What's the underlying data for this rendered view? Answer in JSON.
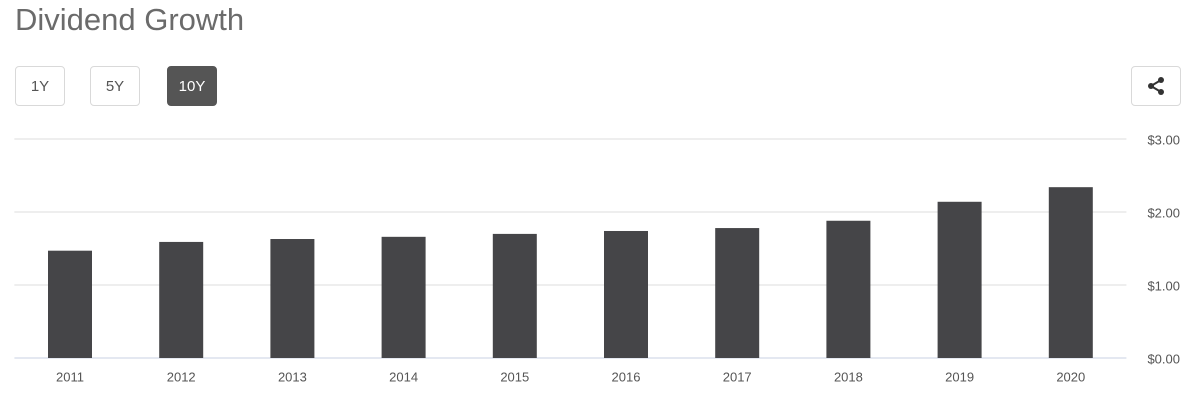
{
  "range_buttons": [
    "1Y",
    "5Y",
    "10Y"
  ],
  "selected_button": 2,
  "chart_data": {
    "type": "bar",
    "title": "Dividend Growth",
    "categories": [
      "2011",
      "2012",
      "2013",
      "2014",
      "2015",
      "2016",
      "2017",
      "2018",
      "2019",
      "2020"
    ],
    "values": [
      1.47,
      1.59,
      1.63,
      1.66,
      1.7,
      1.74,
      1.78,
      1.88,
      2.14,
      2.34
    ],
    "color": "#454548",
    "ylim": [
      0,
      3
    ],
    "yticks": [
      {
        "value": 0,
        "label": "$0.00"
      },
      {
        "value": 1,
        "label": "$1.00"
      },
      {
        "value": 2,
        "label": "$2.00"
      },
      {
        "value": 3,
        "label": "$3.00"
      }
    ],
    "grid": true
  }
}
